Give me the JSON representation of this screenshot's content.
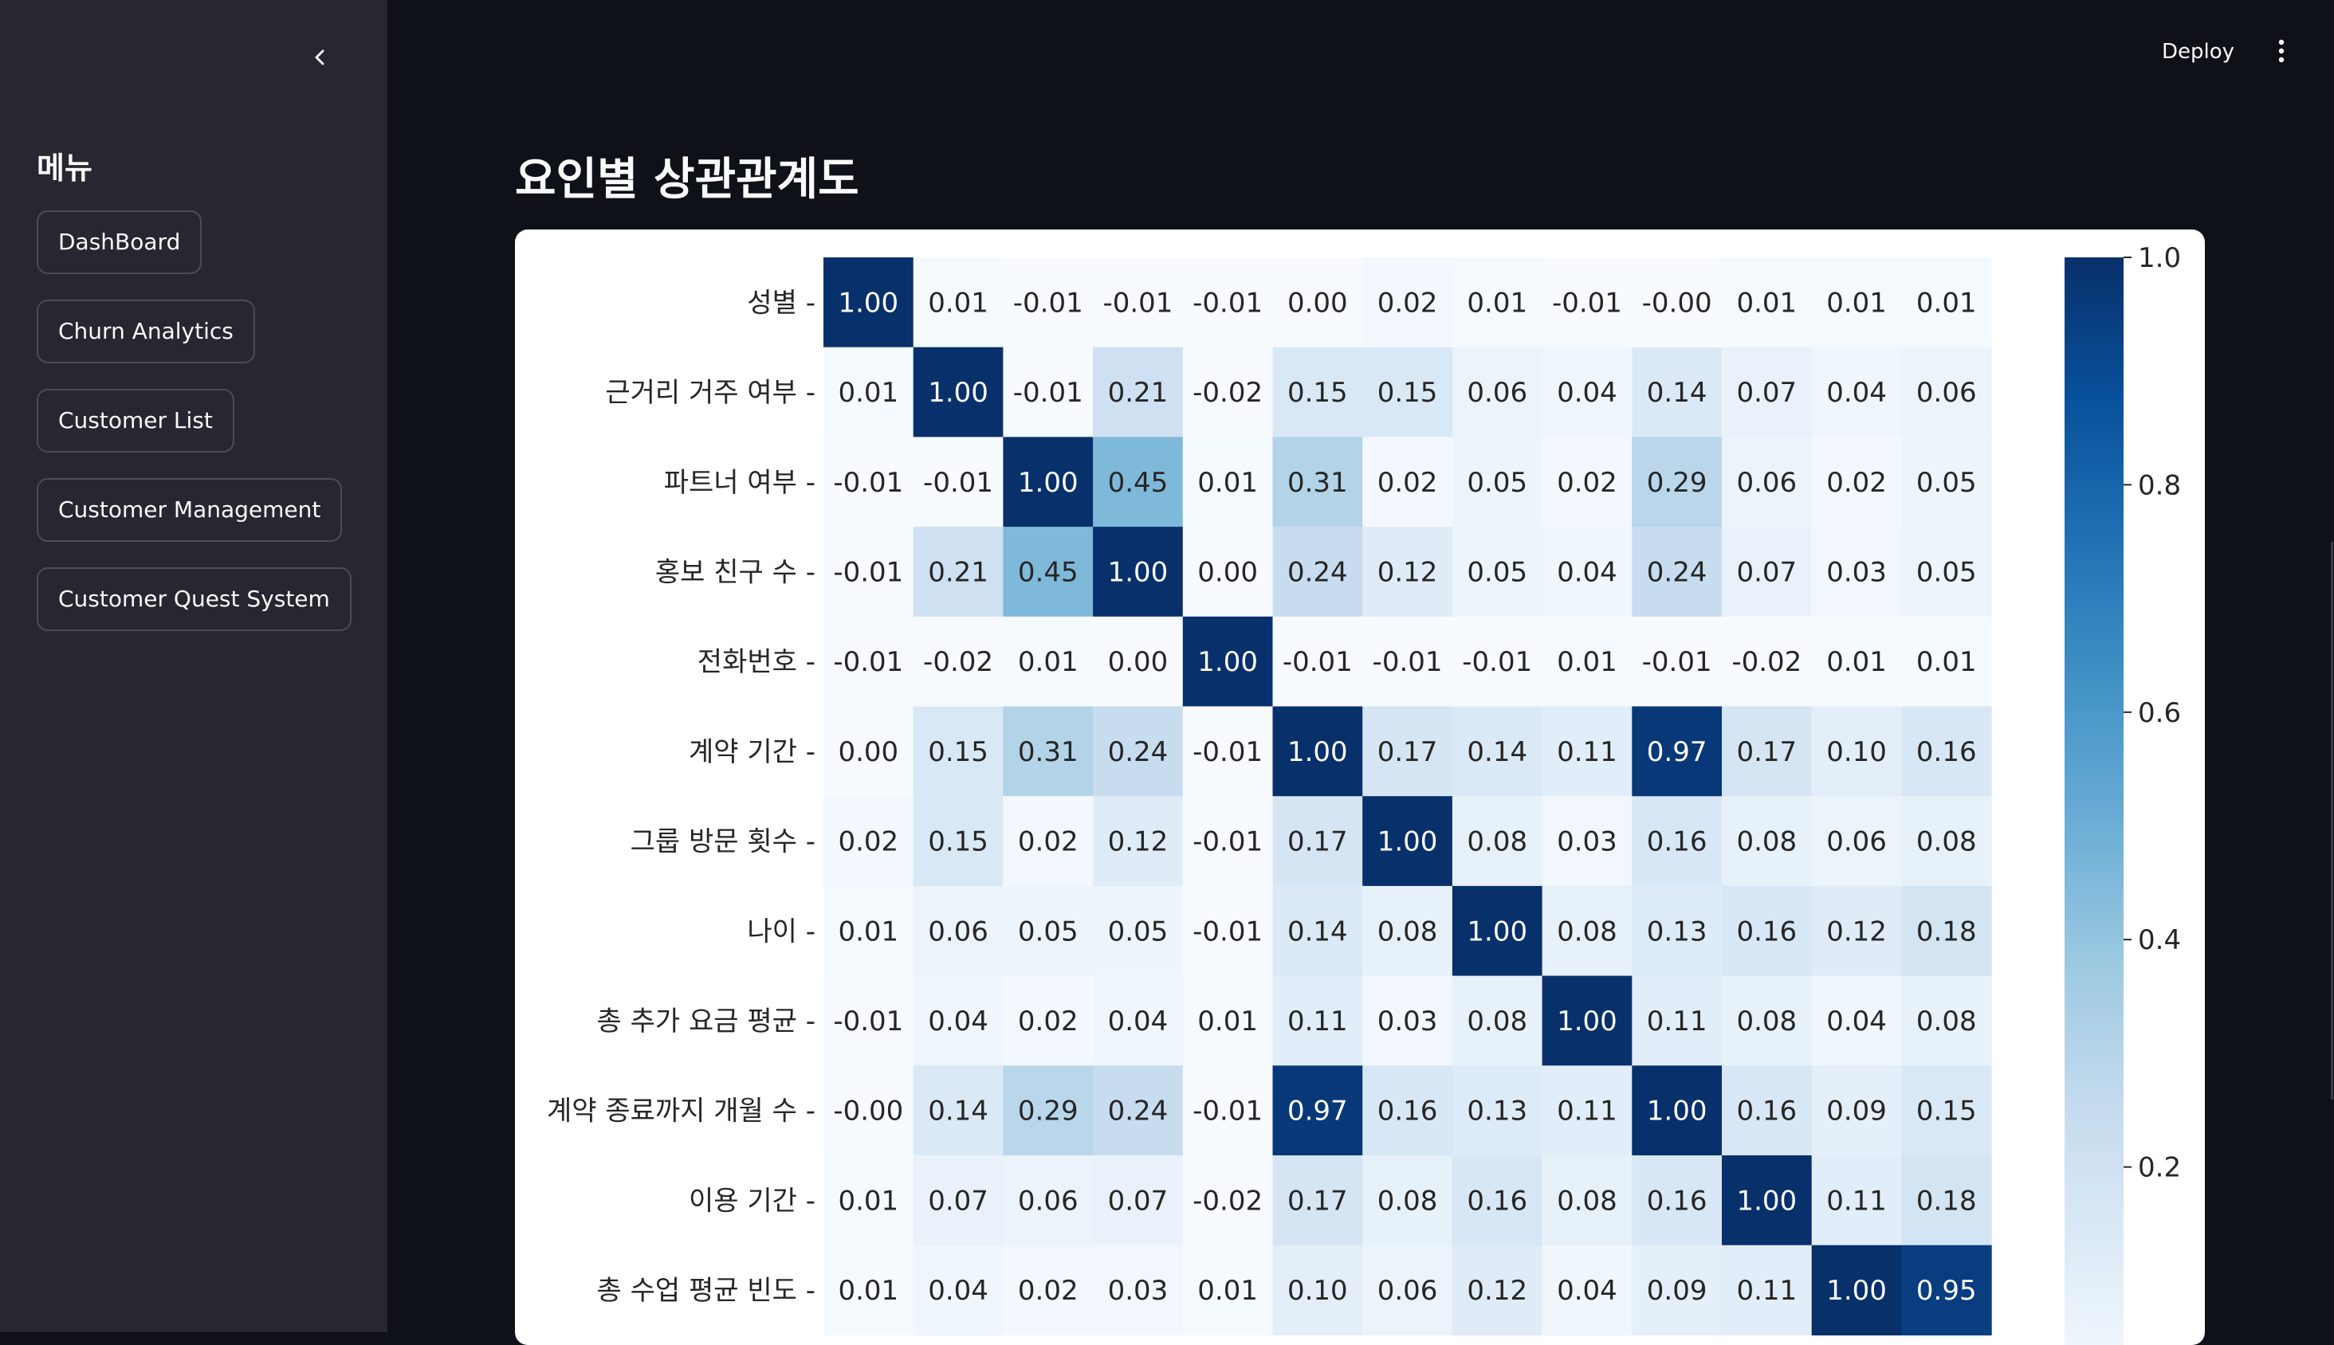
{
  "sidebar": {
    "menu_title": "메뉴",
    "items": [
      {
        "label": "DashBoard"
      },
      {
        "label": "Churn Analytics"
      },
      {
        "label": "Customer List"
      },
      {
        "label": "Customer Management"
      },
      {
        "label": "Customer Quest System"
      }
    ]
  },
  "header": {
    "deploy_label": "Deploy"
  },
  "main": {
    "title": "요인별 상관관계도"
  },
  "icons": {
    "collapse": "chevron-left-icon",
    "menu": "vertical-dots-icon"
  },
  "colors": {
    "background": "#0e1117",
    "sidebar": "#262730",
    "heatmap_low": "#f7fbff",
    "heatmap_high": "#08306b"
  },
  "chart_data": {
    "type": "heatmap",
    "title": "",
    "colormap": "Blues",
    "row_labels": [
      "성별",
      "근거리 거주 여부",
      "파트너 여부",
      "홍보 친구 수",
      "전화번호",
      "계약 기간",
      "그룹 방문 횟수",
      "나이",
      "총 추가 요금 평균",
      "계약 종료까지 개월 수",
      "이용 기간",
      "총 수업 평균 빈도"
    ],
    "values": [
      [
        "1.00",
        "0.01",
        "-0.01",
        "-0.01",
        "-0.01",
        "0.00",
        "0.02",
        "0.01",
        "-0.01",
        "-0.00",
        "0.01",
        "0.01",
        "0.01"
      ],
      [
        "0.01",
        "1.00",
        "-0.01",
        "0.21",
        "-0.02",
        "0.15",
        "0.15",
        "0.06",
        "0.04",
        "0.14",
        "0.07",
        "0.04",
        "0.06"
      ],
      [
        "-0.01",
        "-0.01",
        "1.00",
        "0.45",
        "0.01",
        "0.31",
        "0.02",
        "0.05",
        "0.02",
        "0.29",
        "0.06",
        "0.02",
        "0.05"
      ],
      [
        "-0.01",
        "0.21",
        "0.45",
        "1.00",
        "0.00",
        "0.24",
        "0.12",
        "0.05",
        "0.04",
        "0.24",
        "0.07",
        "0.03",
        "0.05"
      ],
      [
        "-0.01",
        "-0.02",
        "0.01",
        "0.00",
        "1.00",
        "-0.01",
        "-0.01",
        "-0.01",
        "0.01",
        "-0.01",
        "-0.02",
        "0.01",
        "0.01"
      ],
      [
        "0.00",
        "0.15",
        "0.31",
        "0.24",
        "-0.01",
        "1.00",
        "0.17",
        "0.14",
        "0.11",
        "0.97",
        "0.17",
        "0.10",
        "0.16"
      ],
      [
        "0.02",
        "0.15",
        "0.02",
        "0.12",
        "-0.01",
        "0.17",
        "1.00",
        "0.08",
        "0.03",
        "0.16",
        "0.08",
        "0.06",
        "0.08"
      ],
      [
        "0.01",
        "0.06",
        "0.05",
        "0.05",
        "-0.01",
        "0.14",
        "0.08",
        "1.00",
        "0.08",
        "0.13",
        "0.16",
        "0.12",
        "0.18"
      ],
      [
        "-0.01",
        "0.04",
        "0.02",
        "0.04",
        "0.01",
        "0.11",
        "0.03",
        "0.08",
        "1.00",
        "0.11",
        "0.08",
        "0.04",
        "0.08"
      ],
      [
        "-0.00",
        "0.14",
        "0.29",
        "0.24",
        "-0.01",
        "0.97",
        "0.16",
        "0.13",
        "0.11",
        "1.00",
        "0.16",
        "0.09",
        "0.15"
      ],
      [
        "0.01",
        "0.07",
        "0.06",
        "0.07",
        "-0.02",
        "0.17",
        "0.08",
        "0.16",
        "0.08",
        "0.16",
        "1.00",
        "0.11",
        "0.18"
      ],
      [
        "0.01",
        "0.04",
        "0.02",
        "0.03",
        "0.01",
        "0.10",
        "0.06",
        "0.12",
        "0.04",
        "0.09",
        "0.11",
        "1.00",
        "0.95"
      ]
    ],
    "colorbar": {
      "ticks": [
        "1.0",
        "0.8",
        "0.6",
        "0.4",
        "0.2"
      ],
      "vmin": 0.0,
      "vmax": 1.0
    }
  }
}
